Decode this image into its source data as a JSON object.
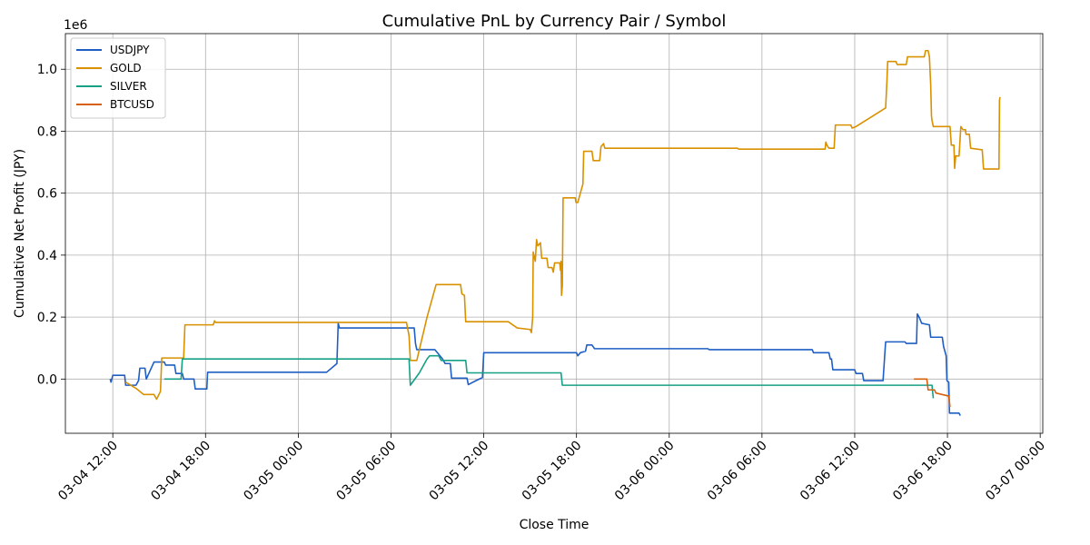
{
  "chart_data": {
    "type": "line",
    "title": "Cumulative PnL by Currency Pair / Symbol",
    "xlabel": "Close Time",
    "ylabel": "Cumulative Net Profit (JPY)",
    "y_offset_label": "1e6",
    "x_axis": "datetime",
    "xlim": [
      "2024-03-04T08:56",
      "2024-03-07T00:10"
    ],
    "ylim": [
      -0.175,
      1.115
    ],
    "x_ticks": [
      {
        "value": "2024-03-04T12:00",
        "label": "03-04 12:00"
      },
      {
        "value": "2024-03-04T18:00",
        "label": "03-04 18:00"
      },
      {
        "value": "2024-03-05T00:00",
        "label": "03-05 00:00"
      },
      {
        "value": "2024-03-05T06:00",
        "label": "03-05 06:00"
      },
      {
        "value": "2024-03-05T12:00",
        "label": "03-05 12:00"
      },
      {
        "value": "2024-03-05T18:00",
        "label": "03-05 18:00"
      },
      {
        "value": "2024-03-06T00:00",
        "label": "03-06 00:00"
      },
      {
        "value": "2024-03-06T06:00",
        "label": "03-06 06:00"
      },
      {
        "value": "2024-03-06T12:00",
        "label": "03-06 12:00"
      },
      {
        "value": "2024-03-06T18:00",
        "label": "03-06 18:00"
      },
      {
        "value": "2024-03-07T00:00",
        "label": "03-07 00:00"
      }
    ],
    "y_ticks": [
      {
        "value": 0.0,
        "label": "0.0"
      },
      {
        "value": 0.2,
        "label": "0.2"
      },
      {
        "value": 0.4,
        "label": "0.4"
      },
      {
        "value": 0.6,
        "label": "0.6"
      },
      {
        "value": 0.8,
        "label": "0.8"
      },
      {
        "value": 1.0,
        "label": "1.0"
      }
    ],
    "grid": true,
    "legend_position": "top-left",
    "series": [
      {
        "name": "USDJPY",
        "color": "#1f5fc4",
        "points": [
          [
            "2024-03-04T11:50",
            0.0
          ],
          [
            "2024-03-04T11:53",
            -0.01
          ],
          [
            "2024-03-04T12:00",
            0.012
          ],
          [
            "2024-03-04T12:46",
            0.012
          ],
          [
            "2024-03-04T12:50",
            -0.02
          ],
          [
            "2024-03-04T13:30",
            -0.02
          ],
          [
            "2024-03-04T13:40",
            -0.005
          ],
          [
            "2024-03-04T13:45",
            0.035
          ],
          [
            "2024-03-04T14:05",
            0.035
          ],
          [
            "2024-03-04T14:10",
            0.0
          ],
          [
            "2024-03-04T14:40",
            0.055
          ],
          [
            "2024-03-04T15:20",
            0.055
          ],
          [
            "2024-03-04T15:25",
            0.045
          ],
          [
            "2024-03-04T16:00",
            0.045
          ],
          [
            "2024-03-04T16:05",
            0.018
          ],
          [
            "2024-03-04T16:30",
            0.018
          ],
          [
            "2024-03-04T16:35",
            0.0
          ],
          [
            "2024-03-04T17:15",
            0.0
          ],
          [
            "2024-03-04T17:20",
            -0.032
          ],
          [
            "2024-03-04T18:05",
            -0.032
          ],
          [
            "2024-03-04T18:08",
            0.022
          ],
          [
            "2024-03-05T01:50",
            0.022
          ],
          [
            "2024-03-05T02:30",
            0.05
          ],
          [
            "2024-03-05T02:35",
            0.18
          ],
          [
            "2024-03-05T02:40",
            0.165
          ],
          [
            "2024-03-05T07:30",
            0.165
          ],
          [
            "2024-03-05T07:35",
            0.115
          ],
          [
            "2024-03-05T07:40",
            0.095
          ],
          [
            "2024-03-05T08:50",
            0.095
          ],
          [
            "2024-03-05T09:20",
            0.065
          ],
          [
            "2024-03-05T09:30",
            0.05
          ],
          [
            "2024-03-05T09:50",
            0.05
          ],
          [
            "2024-03-05T09:55",
            0.003
          ],
          [
            "2024-03-05T10:55",
            0.003
          ],
          [
            "2024-03-05T11:00",
            -0.018
          ],
          [
            "2024-03-05T11:30",
            -0.005
          ],
          [
            "2024-03-05T11:55",
            0.005
          ],
          [
            "2024-03-05T12:00",
            0.085
          ],
          [
            "2024-03-05T18:00",
            0.085
          ],
          [
            "2024-03-05T18:05",
            0.075
          ],
          [
            "2024-03-05T18:15",
            0.085
          ],
          [
            "2024-03-05T18:35",
            0.09
          ],
          [
            "2024-03-05T18:40",
            0.11
          ],
          [
            "2024-03-05T19:00",
            0.11
          ],
          [
            "2024-03-05T19:10",
            0.098
          ],
          [
            "2024-03-06T02:30",
            0.098
          ],
          [
            "2024-03-06T02:35",
            0.095
          ],
          [
            "2024-03-06T09:15",
            0.095
          ],
          [
            "2024-03-06T09:20",
            0.085
          ],
          [
            "2024-03-06T10:20",
            0.085
          ],
          [
            "2024-03-06T10:25",
            0.065
          ],
          [
            "2024-03-06T10:30",
            0.065
          ],
          [
            "2024-03-06T10:35",
            0.03
          ],
          [
            "2024-03-06T12:00",
            0.03
          ],
          [
            "2024-03-06T12:05",
            0.018
          ],
          [
            "2024-03-06T12:30",
            0.018
          ],
          [
            "2024-03-06T12:35",
            -0.005
          ],
          [
            "2024-03-06T13:50",
            -0.005
          ],
          [
            "2024-03-06T14:00",
            0.12
          ],
          [
            "2024-03-06T15:15",
            0.12
          ],
          [
            "2024-03-06T15:20",
            0.115
          ],
          [
            "2024-03-06T16:00",
            0.115
          ],
          [
            "2024-03-06T16:03",
            0.21
          ],
          [
            "2024-03-06T16:10",
            0.2
          ],
          [
            "2024-03-06T16:20",
            0.18
          ],
          [
            "2024-03-06T16:50",
            0.175
          ],
          [
            "2024-03-06T16:55",
            0.135
          ],
          [
            "2024-03-06T17:40",
            0.135
          ],
          [
            "2024-03-06T17:45",
            0.105
          ],
          [
            "2024-03-06T17:55",
            0.075
          ],
          [
            "2024-03-06T17:58",
            -0.005
          ],
          [
            "2024-03-06T18:05",
            -0.01
          ],
          [
            "2024-03-06T18:08",
            -0.11
          ],
          [
            "2024-03-06T18:45",
            -0.11
          ],
          [
            "2024-03-06T18:50",
            -0.118
          ]
        ]
      },
      {
        "name": "GOLD",
        "color": "#d99100",
        "points": [
          [
            "2024-03-04T12:50",
            -0.01
          ],
          [
            "2024-03-04T13:30",
            -0.03
          ],
          [
            "2024-03-04T14:00",
            -0.05
          ],
          [
            "2024-03-04T14:40",
            -0.05
          ],
          [
            "2024-03-04T14:50",
            -0.065
          ],
          [
            "2024-03-04T15:05",
            -0.04
          ],
          [
            "2024-03-04T15:10",
            0.068
          ],
          [
            "2024-03-04T16:35",
            0.068
          ],
          [
            "2024-03-04T16:40",
            0.175
          ],
          [
            "2024-03-04T18:30",
            0.175
          ],
          [
            "2024-03-04T18:35",
            0.188
          ],
          [
            "2024-03-04T18:38",
            0.183
          ],
          [
            "2024-03-05T07:00",
            0.183
          ],
          [
            "2024-03-05T07:10",
            0.14
          ],
          [
            "2024-03-05T07:15",
            0.06
          ],
          [
            "2024-03-05T07:40",
            0.06
          ],
          [
            "2024-03-05T08:20",
            0.2
          ],
          [
            "2024-03-05T08:55",
            0.305
          ],
          [
            "2024-03-05T10:30",
            0.305
          ],
          [
            "2024-03-05T10:35",
            0.275
          ],
          [
            "2024-03-05T10:45",
            0.27
          ],
          [
            "2024-03-05T10:50",
            0.185
          ],
          [
            "2024-03-05T13:35",
            0.185
          ],
          [
            "2024-03-05T14:10",
            0.165
          ],
          [
            "2024-03-05T15:00",
            0.16
          ],
          [
            "2024-03-05T15:05",
            0.15
          ],
          [
            "2024-03-05T15:10",
            0.2
          ],
          [
            "2024-03-05T15:12",
            0.41
          ],
          [
            "2024-03-05T15:20",
            0.38
          ],
          [
            "2024-03-05T15:25",
            0.45
          ],
          [
            "2024-03-05T15:30",
            0.43
          ],
          [
            "2024-03-05T15:40",
            0.44
          ],
          [
            "2024-03-05T15:45",
            0.39
          ],
          [
            "2024-03-05T16:05",
            0.39
          ],
          [
            "2024-03-05T16:10",
            0.36
          ],
          [
            "2024-03-05T16:25",
            0.36
          ],
          [
            "2024-03-05T16:30",
            0.345
          ],
          [
            "2024-03-05T16:35",
            0.375
          ],
          [
            "2024-03-05T16:55",
            0.375
          ],
          [
            "2024-03-05T16:58",
            0.35
          ],
          [
            "2024-03-05T17:00",
            0.38
          ],
          [
            "2024-03-05T17:02",
            0.27
          ],
          [
            "2024-03-05T17:05",
            0.3
          ],
          [
            "2024-03-05T17:08",
            0.585
          ],
          [
            "2024-03-05T17:55",
            0.585
          ],
          [
            "2024-03-05T17:58",
            0.57
          ],
          [
            "2024-03-05T18:05",
            0.57
          ],
          [
            "2024-03-05T18:15",
            0.6
          ],
          [
            "2024-03-05T18:25",
            0.63
          ],
          [
            "2024-03-05T18:28",
            0.735
          ],
          [
            "2024-03-05T19:00",
            0.735
          ],
          [
            "2024-03-05T19:05",
            0.705
          ],
          [
            "2024-03-05T19:30",
            0.705
          ],
          [
            "2024-03-05T19:35",
            0.75
          ],
          [
            "2024-03-05T19:45",
            0.76
          ],
          [
            "2024-03-05T19:50",
            0.745
          ],
          [
            "2024-03-06T04:25",
            0.745
          ],
          [
            "2024-03-06T04:30",
            0.742
          ],
          [
            "2024-03-06T10:05",
            0.742
          ],
          [
            "2024-03-06T10:08",
            0.765
          ],
          [
            "2024-03-06T10:12",
            0.755
          ],
          [
            "2024-03-06T10:20",
            0.745
          ],
          [
            "2024-03-06T10:40",
            0.745
          ],
          [
            "2024-03-06T10:45",
            0.82
          ],
          [
            "2024-03-06T11:45",
            0.82
          ],
          [
            "2024-03-06T11:50",
            0.81
          ],
          [
            "2024-03-06T12:05",
            0.815
          ],
          [
            "2024-03-06T14:00",
            0.875
          ],
          [
            "2024-03-06T14:05",
            0.96
          ],
          [
            "2024-03-06T14:08",
            1.025
          ],
          [
            "2024-03-06T14:40",
            1.025
          ],
          [
            "2024-03-06T14:45",
            1.015
          ],
          [
            "2024-03-06T15:20",
            1.015
          ],
          [
            "2024-03-06T15:25",
            1.04
          ],
          [
            "2024-03-06T16:30",
            1.04
          ],
          [
            "2024-03-06T16:35",
            1.06
          ],
          [
            "2024-03-06T16:45",
            1.06
          ],
          [
            "2024-03-06T16:50",
            1.04
          ],
          [
            "2024-03-06T16:55",
            0.95
          ],
          [
            "2024-03-06T16:58",
            0.85
          ],
          [
            "2024-03-06T17:00",
            0.835
          ],
          [
            "2024-03-06T17:05",
            0.815
          ],
          [
            "2024-03-06T18:10",
            0.815
          ],
          [
            "2024-03-06T18:15",
            0.755
          ],
          [
            "2024-03-06T18:25",
            0.755
          ],
          [
            "2024-03-06T18:28",
            0.68
          ],
          [
            "2024-03-06T18:32",
            0.72
          ],
          [
            "2024-03-06T18:45",
            0.72
          ],
          [
            "2024-03-06T18:48",
            0.76
          ],
          [
            "2024-03-06T18:52",
            0.815
          ],
          [
            "2024-03-06T19:00",
            0.805
          ],
          [
            "2024-03-06T19:10",
            0.805
          ],
          [
            "2024-03-06T19:12",
            0.79
          ],
          [
            "2024-03-06T19:25",
            0.79
          ],
          [
            "2024-03-06T19:30",
            0.745
          ],
          [
            "2024-03-06T20:15",
            0.74
          ],
          [
            "2024-03-06T20:20",
            0.678
          ],
          [
            "2024-03-06T21:20",
            0.678
          ],
          [
            "2024-03-06T21:22",
            0.9
          ],
          [
            "2024-03-06T21:24",
            0.91
          ]
        ]
      },
      {
        "name": "SILVER",
        "color": "#16a085",
        "points": [
          [
            "2024-03-04T15:20",
            0.0
          ],
          [
            "2024-03-04T16:25",
            0.0
          ],
          [
            "2024-03-04T16:30",
            0.065
          ],
          [
            "2024-03-05T07:10",
            0.065
          ],
          [
            "2024-03-05T07:15",
            -0.02
          ],
          [
            "2024-03-05T07:50",
            0.02
          ],
          [
            "2024-03-05T08:20",
            0.065
          ],
          [
            "2024-03-05T08:30",
            0.075
          ],
          [
            "2024-03-05T09:05",
            0.075
          ],
          [
            "2024-03-05T09:15",
            0.06
          ],
          [
            "2024-03-05T10:50",
            0.06
          ],
          [
            "2024-03-05T10:55",
            0.02
          ],
          [
            "2024-03-05T17:00",
            0.02
          ],
          [
            "2024-03-05T17:05",
            -0.02
          ],
          [
            "2024-03-06T17:00",
            -0.02
          ],
          [
            "2024-03-06T17:05",
            -0.062
          ]
        ]
      },
      {
        "name": "BTCUSD",
        "color": "#d6600c",
        "points": [
          [
            "2024-03-06T15:50",
            0.0
          ],
          [
            "2024-03-06T16:40",
            0.0
          ],
          [
            "2024-03-06T16:45",
            -0.035
          ],
          [
            "2024-03-06T17:10",
            -0.035
          ],
          [
            "2024-03-06T17:15",
            -0.045
          ],
          [
            "2024-03-06T18:05",
            -0.055
          ],
          [
            "2024-03-06T18:10",
            -0.09
          ]
        ]
      }
    ]
  }
}
